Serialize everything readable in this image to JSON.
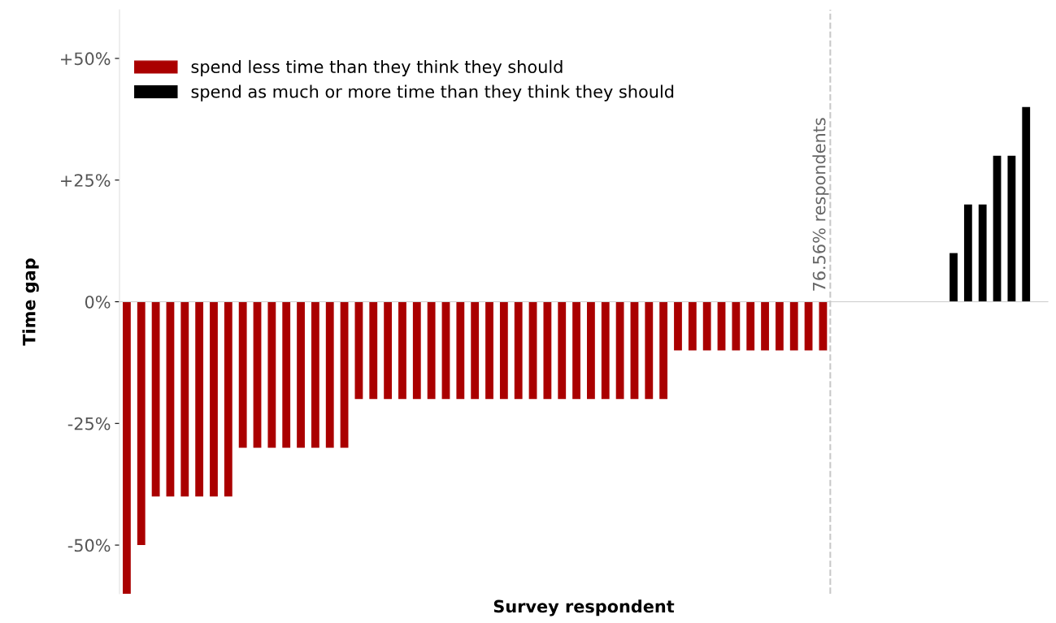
{
  "chart_data": {
    "type": "bar",
    "xlabel": "Survey respondent",
    "ylabel": "Time gap",
    "categories": [
      null,
      null,
      null,
      null,
      null,
      null,
      null,
      null,
      null,
      null,
      null,
      null,
      null,
      null,
      null,
      null,
      null,
      null,
      null,
      null,
      null,
      null,
      null,
      null,
      null,
      null,
      null,
      null,
      null,
      null,
      null,
      null,
      null,
      null,
      null,
      null,
      null,
      null,
      null,
      null,
      null,
      null,
      null,
      null,
      null,
      null,
      null,
      null,
      null,
      null,
      null,
      null,
      null,
      null,
      null,
      null,
      null,
      null,
      null,
      null,
      null,
      null,
      null,
      null
    ],
    "series": [
      {
        "name": "spend less time than they think they should",
        "color": "#aa0000",
        "values": [
          -60,
          -50,
          -40,
          -40,
          -40,
          -40,
          -40,
          -40,
          -30,
          -30,
          -30,
          -30,
          -30,
          -30,
          -30,
          -30,
          -20,
          -20,
          -20,
          -20,
          -20,
          -20,
          -20,
          -20,
          -20,
          -20,
          -20,
          -20,
          -20,
          -20,
          -20,
          -20,
          -20,
          -20,
          -20,
          -20,
          -20,
          -20,
          -10,
          -10,
          -10,
          -10,
          -10,
          -10,
          -10,
          -10,
          -10,
          -10,
          -10,
          null,
          null,
          null,
          null,
          null,
          null,
          null,
          null,
          null,
          null,
          null,
          null,
          null,
          null,
          null
        ]
      },
      {
        "name": "spend as much or more time than they think they should",
        "color": "#000000",
        "values": [
          null,
          null,
          null,
          null,
          null,
          null,
          null,
          null,
          null,
          null,
          null,
          null,
          null,
          null,
          null,
          null,
          null,
          null,
          null,
          null,
          null,
          null,
          null,
          null,
          null,
          null,
          null,
          null,
          null,
          null,
          null,
          null,
          null,
          null,
          null,
          null,
          null,
          null,
          null,
          null,
          null,
          null,
          null,
          null,
          null,
          null,
          null,
          null,
          null,
          0,
          0,
          0,
          0,
          0,
          0,
          0,
          0,
          10,
          20,
          20,
          30,
          30,
          40,
          0
        ]
      }
    ],
    "ylim": [
      -60,
      60
    ],
    "yticks": [
      {
        "value": -50,
        "label": "-50%"
      },
      {
        "value": -25,
        "label": "-25%"
      },
      {
        "value": 0,
        "label": "0%"
      },
      {
        "value": 25,
        "label": "+25%"
      },
      {
        "value": 50,
        "label": "+50%"
      }
    ],
    "annotations": [
      "76.56% respondents"
    ],
    "grid": false,
    "legend": "top left"
  }
}
